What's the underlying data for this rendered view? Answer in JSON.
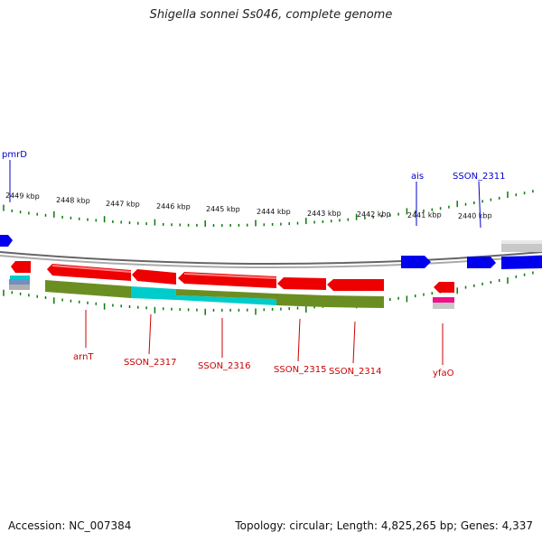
{
  "title": "Shigella sonnei Ss046, complete genome",
  "footer": {
    "accession": "Accession: NC_007384",
    "topology": "Topology: circular; Length: 4,825,265 bp; Genes: 4,337"
  },
  "colors": {
    "forward_gene": "#0000ee",
    "reverse_gene": "#ee0000",
    "olive_feature": "#6b8e23",
    "cyan_feature": "#00cccc",
    "backbone": "#888888",
    "tick": "#0a7a0a",
    "top_label": "#0000cc",
    "bottom_label": "#cc0000"
  },
  "scale_labels": [
    "2449 kbp",
    "2448 kbp",
    "2447 kbp",
    "2446 kbp",
    "2445 kbp",
    "2444 kbp",
    "2443 kbp",
    "2442 kbp",
    "2441 kbp",
    "2440 kbp"
  ],
  "top_gene_labels": [
    "pmrD",
    "ais",
    "SSON_2311"
  ],
  "bottom_gene_labels": [
    "arnT",
    "SSON_2317",
    "SSON_2316",
    "SSON_2315",
    "SSON_2314",
    "yfaO"
  ]
}
